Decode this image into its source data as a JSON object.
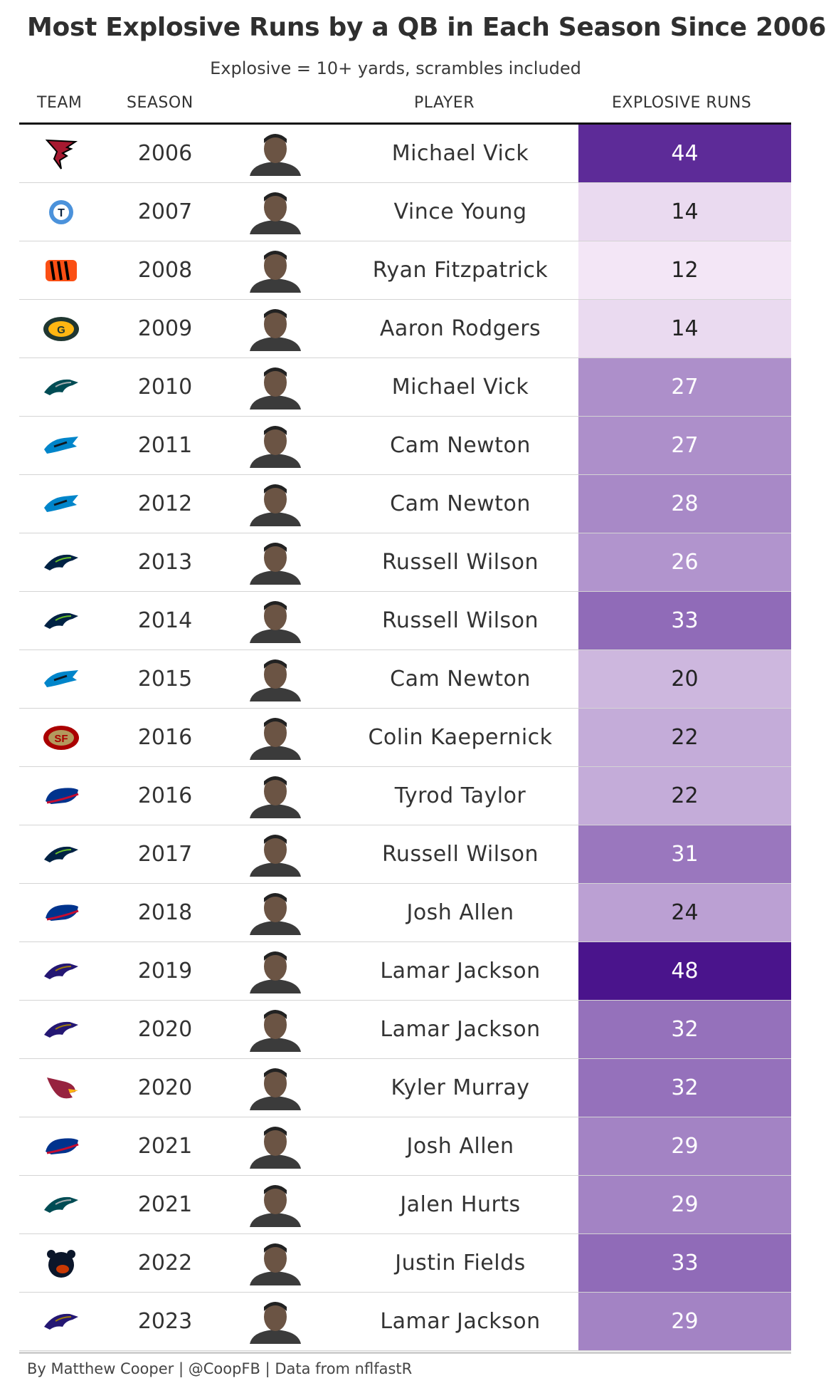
{
  "title": "Most Explosive Runs by a QB in Each Season Since 2006",
  "subtitle": "Explosive = 10+ yards, scrambles included",
  "columns": {
    "team": "TEAM",
    "season": "SEASON",
    "player": "PLAYER",
    "value": "EXPLOSIVE RUNS"
  },
  "footer": "By Matthew Cooper | @CoopFB | Data from nflfastR",
  "colors": {
    "low": "#f3e6f6",
    "high": "#4a148c"
  },
  "chart_data": {
    "type": "table",
    "title": "Most Explosive Runs by a QB in Each Season Since 2006",
    "subtitle": "Explosive = 10+ yards, scrambles included",
    "columns": [
      "TEAM",
      "SEASON",
      "PLAYER",
      "EXPLOSIVE RUNS"
    ],
    "rows": [
      {
        "team": "falcons-logo",
        "season": "2006",
        "player": "Michael Vick",
        "value": 44
      },
      {
        "team": "titans-logo",
        "season": "2007",
        "player": "Vince Young",
        "value": 14
      },
      {
        "team": "bengals-logo",
        "season": "2008",
        "player": "Ryan Fitzpatrick",
        "value": 12
      },
      {
        "team": "packers-logo",
        "season": "2009",
        "player": "Aaron Rodgers",
        "value": 14
      },
      {
        "team": "eagles-logo",
        "season": "2010",
        "player": "Michael Vick",
        "value": 27
      },
      {
        "team": "panthers-logo",
        "season": "2011",
        "player": "Cam Newton",
        "value": 27
      },
      {
        "team": "panthers-logo",
        "season": "2012",
        "player": "Cam Newton",
        "value": 28
      },
      {
        "team": "seahawks-logo",
        "season": "2013",
        "player": "Russell Wilson",
        "value": 26
      },
      {
        "team": "seahawks-logo",
        "season": "2014",
        "player": "Russell Wilson",
        "value": 33
      },
      {
        "team": "panthers-logo",
        "season": "2015",
        "player": "Cam Newton",
        "value": 20
      },
      {
        "team": "49ers-logo",
        "season": "2016",
        "player": "Colin Kaepernick",
        "value": 22
      },
      {
        "team": "bills-logo",
        "season": "2016",
        "player": "Tyrod Taylor",
        "value": 22
      },
      {
        "team": "seahawks-logo",
        "season": "2017",
        "player": "Russell Wilson",
        "value": 31
      },
      {
        "team": "bills-logo",
        "season": "2018",
        "player": "Josh Allen",
        "value": 24
      },
      {
        "team": "ravens-logo",
        "season": "2019",
        "player": "Lamar Jackson",
        "value": 48
      },
      {
        "team": "ravens-logo",
        "season": "2020",
        "player": "Lamar Jackson",
        "value": 32
      },
      {
        "team": "cardinals-logo",
        "season": "2020",
        "player": "Kyler Murray",
        "value": 32
      },
      {
        "team": "bills-logo",
        "season": "2021",
        "player": "Josh Allen",
        "value": 29
      },
      {
        "team": "eagles-logo",
        "season": "2021",
        "player": "Jalen Hurts",
        "value": 29
      },
      {
        "team": "bears-logo",
        "season": "2022",
        "player": "Justin Fields",
        "value": 33
      },
      {
        "team": "ravens-logo",
        "season": "2023",
        "player": "Lamar Jackson",
        "value": 29
      }
    ]
  }
}
